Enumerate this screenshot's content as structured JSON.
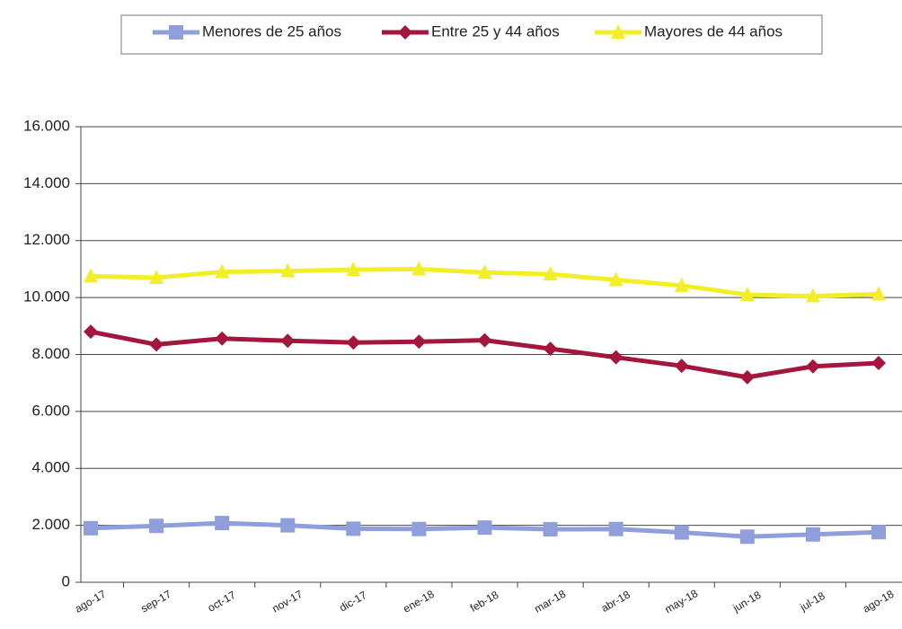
{
  "chart_data": {
    "type": "line",
    "categories": [
      "ago-17",
      "sep-17",
      "oct-17",
      "nov-17",
      "dic-17",
      "ene-18",
      "feb-18",
      "mar-18",
      "abr-18",
      "may-18",
      "jun-18",
      "jul-18",
      "ago-18"
    ],
    "series": [
      {
        "name": "Menores de 25 años",
        "color": "#8f9fdc",
        "marker": "square",
        "values": [
          1900,
          1980,
          2080,
          2000,
          1880,
          1870,
          1920,
          1860,
          1870,
          1750,
          1600,
          1680,
          1760
        ]
      },
      {
        "name": "Entre 25 y 44 años",
        "color": "#a3173f",
        "marker": "diamond",
        "values": [
          8800,
          8350,
          8560,
          8480,
          8420,
          8450,
          8500,
          8200,
          7900,
          7600,
          7200,
          7580,
          7700
        ]
      },
      {
        "name": "Mayores de 44 años",
        "color": "#f2ef2a",
        "marker": "triangle",
        "values": [
          10750,
          10700,
          10900,
          10930,
          10980,
          11000,
          10880,
          10820,
          10620,
          10420,
          10100,
          10050,
          10120
        ]
      }
    ],
    "ylim": [
      0,
      16000
    ],
    "yticks": [
      0,
      {
        "value": 2000,
        "label": "2.000"
      },
      {
        "value": 4000,
        "label": "4.000"
      },
      {
        "value": 6000,
        "label": "6.000"
      },
      {
        "value": 8000,
        "label": "8.000"
      },
      {
        "value": 10000,
        "label": "10.000"
      },
      {
        "value": 12000,
        "label": "12.000"
      },
      {
        "value": 14000,
        "label": "14.000"
      },
      {
        "value": 16000,
        "label": "16.000"
      }
    ],
    "grid": true,
    "legend": "top"
  }
}
